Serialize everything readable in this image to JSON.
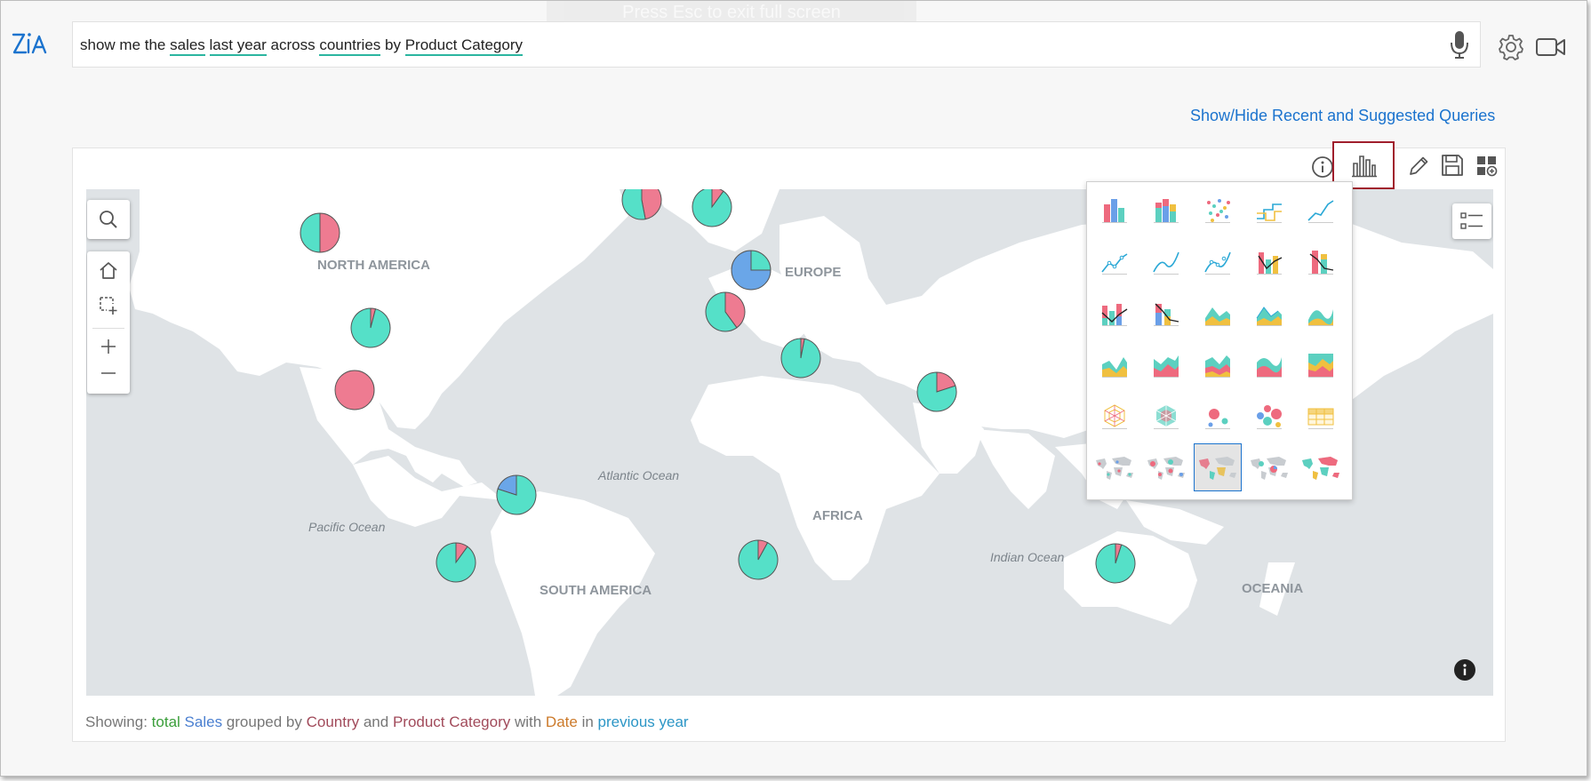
{
  "banner": {
    "text": "Press Esc to exit full screen"
  },
  "search": {
    "parts": [
      "show me the ",
      "sales",
      " ",
      "last year",
      " across ",
      "countries",
      " by ",
      "Product Category"
    ]
  },
  "links": {
    "show_hide": "Show/Hide Recent and Suggested Queries"
  },
  "map": {
    "continents": {
      "north_america": "NORTH AMERICA",
      "europe": "EUROPE",
      "south_america": "SOUTH AMERICA",
      "africa": "AFRICA",
      "oceania": "OCEANIA"
    },
    "oceans": {
      "atlantic": "Atlantic Ocean",
      "pacific": "Pacific Ocean",
      "indian": "Indian Ocean"
    }
  },
  "colors": {
    "teal": "#55e0c8",
    "pink": "#ee7b91",
    "blue": "#6aa6e8"
  },
  "chart_types": [
    "bar",
    "stacked-bar",
    "scatter",
    "step-line",
    "line",
    "line-points",
    "smooth-line",
    "smooth-line-points",
    "bar-line",
    "stacked-bar-line",
    "stacked-bar-line-2",
    "stacked-bar-line-3",
    "area",
    "area-points",
    "smooth-area",
    "stacked-area",
    "stacked-area-2",
    "stacked-area-3",
    "stacked-smooth-area",
    "percentage-area",
    "web",
    "filled-web",
    "bubble",
    "packed-bubble",
    "pivot-table",
    "geo-map-points",
    "geo-map-bubble",
    "geo-map-pie",
    "geo-map-scatter",
    "geo-map-filled"
  ],
  "selected_chart": "geo-map-pie",
  "showing": {
    "prefix": "Showing: ",
    "agg": "total",
    "measure": "Sales",
    "t1": " grouped by ",
    "dim1": "Country",
    "t2": " and ",
    "dim2": "Product Category",
    "t3": " with ",
    "dim3": "Date",
    "t4": " in ",
    "period": "previous year"
  }
}
